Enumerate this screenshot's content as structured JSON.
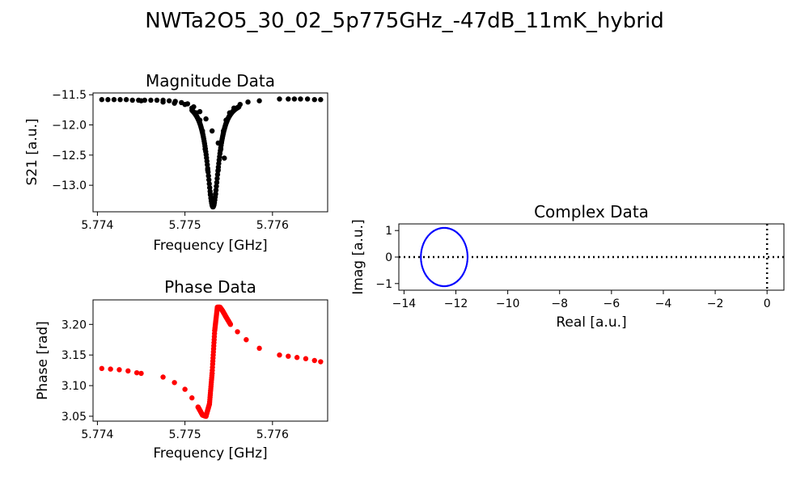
{
  "figure": {
    "title": "NWTa2O5_30_02_5p775GHz_-47dB_11mK_hybrid"
  },
  "chart_data": [
    {
      "type": "scatter",
      "title": "Magnitude Data",
      "xlabel": "Frequency [GHz]",
      "ylabel": "S21 [a.u.]",
      "xlim": [
        5.77395,
        5.77663
      ],
      "ylim": [
        -13.44,
        -11.47
      ],
      "xticks": [
        5.774,
        5.775,
        5.776
      ],
      "xtick_labels": [
        "5.774",
        "5.775",
        "5.776"
      ],
      "yticks": [
        -11.5,
        -12.0,
        -12.5,
        -13.0
      ],
      "ytick_labels": [
        "−11.5",
        "−12.0",
        "−12.5",
        "−13.0"
      ],
      "grid": false,
      "color": "#000000",
      "resonance": {
        "f0": 5.77532,
        "fwhm": 0.00016,
        "baseline": -11.58,
        "depth": 1.78
      },
      "x": [
        5.77405,
        5.77412,
        5.77419,
        5.77426,
        5.77433,
        5.7744,
        5.77447,
        5.77454,
        5.77461,
        5.77468,
        5.77475,
        5.77482,
        5.77489,
        5.77496,
        5.77503,
        5.7751,
        5.77517,
        5.77524,
        5.77531,
        5.77538,
        5.77545,
        5.7745,
        5.77475,
        5.77488,
        5.775,
        5.77508,
        5.77513,
        5.77517,
        5.7752,
        5.77523,
        5.77526,
        5.77529,
        5.77532,
        5.77535,
        5.77538,
        5.77541,
        5.77544,
        5.77547,
        5.77551,
        5.77556,
        5.77563,
        5.77572,
        5.77585,
        5.77608,
        5.77618,
        5.77625,
        5.77632,
        5.7764,
        5.77648,
        5.77655
      ],
      "y": [
        -11.58,
        -11.58,
        -11.58,
        -11.58,
        -11.58,
        -11.59,
        -11.59,
        -11.59,
        -11.59,
        -11.59,
        -11.59,
        -11.6,
        -11.61,
        -11.63,
        -11.65,
        -11.7,
        -11.78,
        -11.9,
        -12.1,
        -12.3,
        -12.55,
        -11.6,
        -11.62,
        -11.64,
        -11.66,
        -11.72,
        -11.8,
        -11.92,
        -12.1,
        -12.4,
        -12.75,
        -13.15,
        -13.34,
        -13.15,
        -12.75,
        -12.4,
        -12.1,
        -11.92,
        -11.8,
        -11.72,
        -11.66,
        -11.62,
        -11.6,
        -11.57,
        -11.57,
        -11.57,
        -11.57,
        -11.57,
        -11.58,
        -11.58
      ]
    },
    {
      "type": "scatter",
      "title": "Phase Data",
      "xlabel": "Frequency [GHz]",
      "ylabel": "Phase [rad]",
      "xlim": [
        5.77395,
        5.77663
      ],
      "ylim": [
        3.042,
        3.24
      ],
      "xticks": [
        5.774,
        5.775,
        5.776
      ],
      "xtick_labels": [
        "5.774",
        "5.775",
        "5.776"
      ],
      "yticks": [
        3.05,
        3.1,
        3.15,
        3.2
      ],
      "ytick_labels": [
        "3.05",
        "3.10",
        "3.15",
        "3.20"
      ],
      "grid": false,
      "color": "#ff0000",
      "x": [
        5.77405,
        5.77415,
        5.77425,
        5.77435,
        5.77445,
        5.7745,
        5.77475,
        5.77488,
        5.775,
        5.77508,
        5.77515,
        5.7752,
        5.77524,
        5.77528,
        5.77531,
        5.77534,
        5.77537,
        5.7754,
        5.77543,
        5.77547,
        5.77552,
        5.7756,
        5.7757,
        5.77585,
        5.77608,
        5.77618,
        5.77628,
        5.77638,
        5.77648,
        5.77655
      ],
      "y": [
        3.128,
        3.127,
        3.126,
        3.124,
        3.121,
        3.12,
        3.114,
        3.105,
        3.094,
        3.08,
        3.065,
        3.052,
        3.05,
        3.07,
        3.12,
        3.19,
        3.228,
        3.228,
        3.222,
        3.212,
        3.2,
        3.188,
        3.175,
        3.161,
        3.15,
        3.148,
        3.146,
        3.144,
        3.141,
        3.139
      ]
    },
    {
      "type": "scatter",
      "title": "Complex Data",
      "xlabel": "Real [a.u.]",
      "ylabel": "Imag [a.u.]",
      "xlim": [
        -14.2,
        0.65
      ],
      "ylim": [
        -1.25,
        1.25
      ],
      "xticks": [
        -14,
        -12,
        -10,
        -8,
        -6,
        -4,
        -2,
        0
      ],
      "xtick_labels": [
        "−14",
        "−12",
        "−10",
        "−8",
        "−6",
        "−4",
        "−2",
        "0"
      ],
      "yticks": [
        -1,
        0,
        1
      ],
      "ytick_labels": [
        "−1",
        "0",
        "1"
      ],
      "grid": false,
      "color": "#0000ff",
      "circle": {
        "center": [
          -12.45,
          0.0
        ],
        "radius_x": 0.9,
        "radius_y": 1.1
      },
      "reference_lines": {
        "x": 0,
        "y": 0,
        "style": "dotted",
        "color": "#000000"
      }
    }
  ]
}
